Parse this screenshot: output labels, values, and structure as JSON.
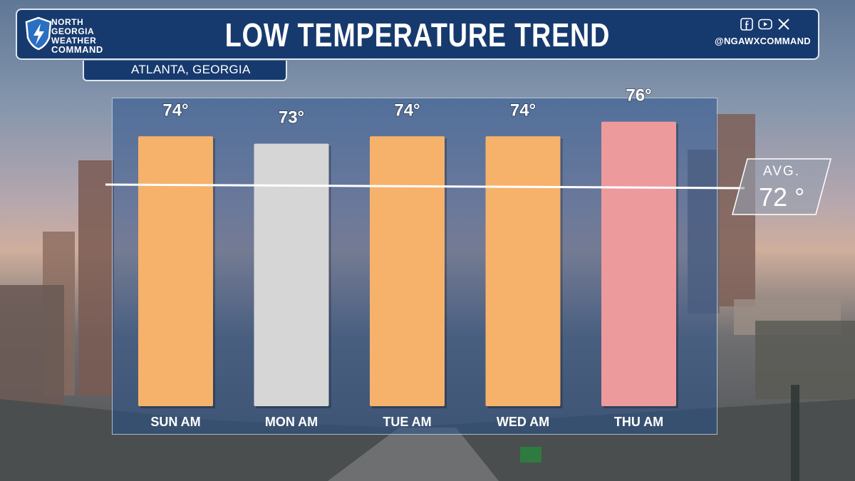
{
  "header": {
    "title": "LOW TEMPERATURE TREND",
    "logo_lines": [
      "NORTH",
      "GEORGIA",
      "WEATHER",
      "COMMAND"
    ],
    "social_handle": "@NGAWXCOMMAND",
    "social_icons": [
      "facebook-icon",
      "youtube-icon",
      "x-icon"
    ]
  },
  "location": "ATLANTA, GEORGIA",
  "chart_data": {
    "type": "bar",
    "title": "LOW TEMPERATURE TREND",
    "categories": [
      "SUN AM",
      "MON AM",
      "TUE AM",
      "WED AM",
      "THU AM"
    ],
    "values": [
      74,
      73,
      74,
      74,
      76
    ],
    "value_labels": [
      "74°",
      "73°",
      "74°",
      "74°",
      "76°"
    ],
    "bar_colors": [
      "#f6b26b",
      "#d6d6d6",
      "#f6b26b",
      "#f6b26b",
      "#ec9a9c"
    ],
    "average": {
      "label": "AVG.",
      "value": 72,
      "display": "72 °"
    },
    "legend": "none",
    "grid": false
  },
  "colors": {
    "header_bg": "#173a6e",
    "panel_bg": "#2a528c",
    "avg_line": "#ffffff"
  }
}
